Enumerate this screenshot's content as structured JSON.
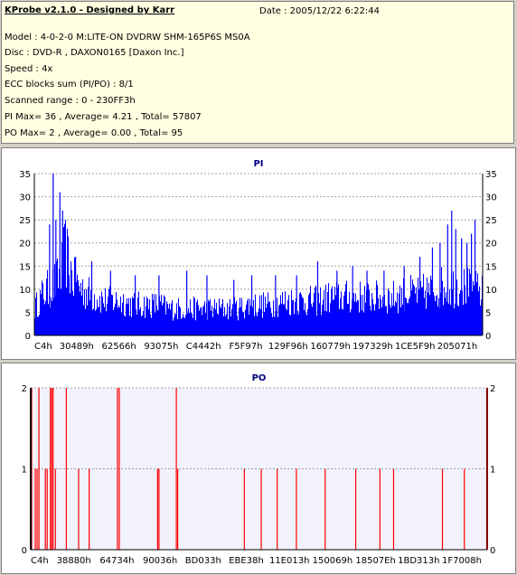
{
  "header": {
    "title": "KProbe v2.1.0 - Designed by Karr",
    "date": "Date : 2005/12/22 6:22:44",
    "lines": [
      "Model : 4-0-2-0 M:LITE-ON DVDRW SHM-165P6S MS0A",
      "Disc : DVD-R , DAXON0165 [Daxon Inc.]",
      "Speed : 4x",
      "ECC blocks sum (PI/PO) : 8/1",
      "Scanned range : 0 - 230FF3h",
      "PI Max= 36 , Average= 4.21 , Total= 57807",
      "PO Max= 2 , Average= 0.00 , Total= 95"
    ]
  },
  "colors": {
    "pi": "#0000ff",
    "po": "#ff0000",
    "grid": "#a0a0a0",
    "title": "#000080"
  },
  "chart_data": [
    {
      "type": "bar",
      "title": "PI",
      "ylim": [
        0,
        35
      ],
      "yticks": [
        0,
        5,
        10,
        15,
        20,
        25,
        30,
        35
      ],
      "xtick_labels": [
        "C4h",
        "30489h",
        "62566h",
        "93075h",
        "C4442h",
        "F5F97h",
        "129F96h",
        "160779h",
        "197329h",
        "1CE5F9h",
        "205071h"
      ],
      "x_domain": [
        0,
        100
      ],
      "envelope": [
        [
          0,
          7
        ],
        [
          1,
          9
        ],
        [
          2,
          11
        ],
        [
          3,
          12
        ],
        [
          4,
          13
        ],
        [
          5,
          14
        ],
        [
          6,
          17
        ],
        [
          7,
          22
        ],
        [
          8,
          17
        ],
        [
          9,
          14
        ],
        [
          10,
          13
        ],
        [
          11,
          12
        ],
        [
          12,
          11
        ],
        [
          14,
          10
        ],
        [
          16,
          9
        ],
        [
          18,
          9
        ],
        [
          20,
          9
        ],
        [
          22,
          8
        ],
        [
          25,
          8
        ],
        [
          28,
          8
        ],
        [
          30,
          7
        ],
        [
          33,
          7
        ],
        [
          35,
          7
        ],
        [
          38,
          7
        ],
        [
          40,
          7
        ],
        [
          42,
          7
        ],
        [
          45,
          7
        ],
        [
          48,
          8
        ],
        [
          50,
          8
        ],
        [
          53,
          8
        ],
        [
          56,
          9
        ],
        [
          60,
          9
        ],
        [
          63,
          9
        ],
        [
          66,
          10
        ],
        [
          70,
          10
        ],
        [
          73,
          10
        ],
        [
          76,
          10
        ],
        [
          80,
          10
        ],
        [
          83,
          11
        ],
        [
          86,
          11
        ],
        [
          89,
          12
        ],
        [
          92,
          13
        ],
        [
          95,
          13
        ],
        [
          98,
          12
        ],
        [
          100,
          11
        ]
      ],
      "spikes": [
        [
          3.4,
          24
        ],
        [
          4.2,
          36
        ],
        [
          4.8,
          25
        ],
        [
          5.7,
          31
        ],
        [
          6.3,
          27
        ],
        [
          6.9,
          22
        ],
        [
          7.5,
          17
        ],
        [
          9.2,
          17
        ],
        [
          12.8,
          16
        ],
        [
          17.0,
          14
        ],
        [
          22.5,
          13
        ],
        [
          27.8,
          13
        ],
        [
          34.0,
          14
        ],
        [
          38.5,
          13
        ],
        [
          44.5,
          12
        ],
        [
          48.5,
          13
        ],
        [
          53.8,
          13
        ],
        [
          58.5,
          13
        ],
        [
          63.2,
          16
        ],
        [
          67.5,
          14
        ],
        [
          71.0,
          15
        ],
        [
          74.2,
          14
        ],
        [
          78.0,
          14
        ],
        [
          82.5,
          15
        ],
        [
          86.0,
          17
        ],
        [
          88.8,
          19
        ],
        [
          90.5,
          20
        ],
        [
          92.2,
          24
        ],
        [
          93.1,
          27
        ],
        [
          94.0,
          23
        ],
        [
          95.3,
          21
        ],
        [
          96.5,
          20
        ],
        [
          97.5,
          22
        ],
        [
          98.3,
          25
        ]
      ]
    },
    {
      "type": "bar",
      "title": "PO",
      "ylim": [
        0,
        2
      ],
      "yticks": [
        0,
        1,
        2
      ],
      "xtick_labels": [
        "C4h",
        "38880h",
        "64734h",
        "90036h",
        "BD033h",
        "EBE38h",
        "11E013h",
        "150069h",
        "18507Eh",
        "1BD313h",
        "1F7008h"
      ],
      "x_domain": [
        0,
        100
      ],
      "values": [
        [
          0,
          2
        ],
        [
          0.2,
          2
        ],
        [
          1.0,
          1
        ],
        [
          1.4,
          1
        ],
        [
          1.8,
          2
        ],
        [
          3.2,
          1
        ],
        [
          3.6,
          1
        ],
        [
          4.3,
          2
        ],
        [
          4.6,
          2
        ],
        [
          4.9,
          2
        ],
        [
          5.4,
          1
        ],
        [
          7.8,
          2
        ],
        [
          10.5,
          1
        ],
        [
          12.8,
          1
        ],
        [
          19.0,
          2
        ],
        [
          19.4,
          2
        ],
        [
          27.8,
          1
        ],
        [
          28.1,
          1
        ],
        [
          31.9,
          2
        ],
        [
          32.2,
          1
        ],
        [
          46.8,
          1
        ],
        [
          50.5,
          1
        ],
        [
          54.0,
          1
        ],
        [
          58.2,
          1
        ],
        [
          64.5,
          1
        ],
        [
          71.2,
          1
        ],
        [
          76.5,
          1
        ],
        [
          79.5,
          1
        ],
        [
          90.2,
          1
        ],
        [
          95.0,
          1
        ],
        [
          99.9,
          2
        ]
      ]
    }
  ]
}
